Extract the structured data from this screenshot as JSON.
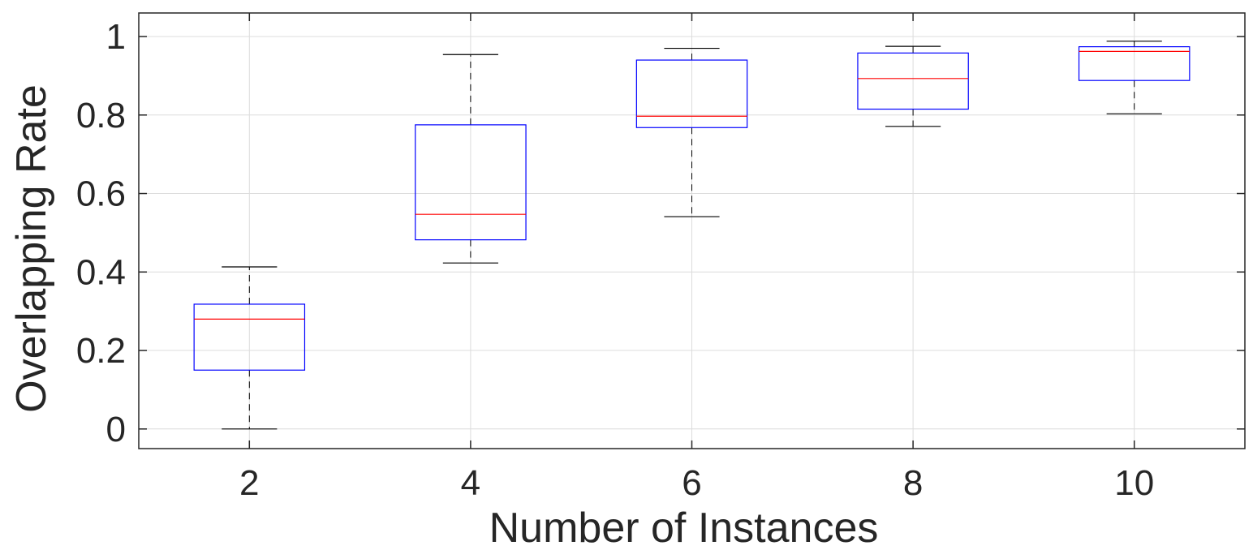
{
  "chart_data": {
    "type": "box",
    "title": "",
    "xlabel": "Number of Instances",
    "ylabel": "Overlapping Rate",
    "categories": [
      "2",
      "4",
      "6",
      "8",
      "10"
    ],
    "ylim": [
      -0.05,
      1.06
    ],
    "yticks": [
      0,
      0.2,
      0.4,
      0.6,
      0.8,
      1
    ],
    "ytick_labels": [
      "0",
      "0.2",
      "0.4",
      "0.6",
      "0.8",
      "1"
    ],
    "grid": true,
    "boxes": [
      {
        "category": "2",
        "whisker_low": 0.0,
        "q1": 0.15,
        "median": 0.28,
        "q3": 0.318,
        "whisker_high": 0.413
      },
      {
        "category": "4",
        "whisker_low": 0.423,
        "q1": 0.482,
        "median": 0.547,
        "q3": 0.775,
        "whisker_high": 0.954
      },
      {
        "category": "6",
        "whisker_low": 0.541,
        "q1": 0.768,
        "median": 0.797,
        "q3": 0.94,
        "whisker_high": 0.97
      },
      {
        "category": "8",
        "whisker_low": 0.771,
        "q1": 0.815,
        "median": 0.893,
        "q3": 0.958,
        "whisker_high": 0.975
      },
      {
        "category": "10",
        "whisker_low": 0.803,
        "q1": 0.888,
        "median": 0.962,
        "q3": 0.974,
        "whisker_high": 0.988
      }
    ],
    "colors": {
      "box": "#0000ff",
      "median": "#ff0000",
      "whisker": "#000000",
      "grid": "#dcdcdc",
      "axis": "#262626"
    }
  }
}
